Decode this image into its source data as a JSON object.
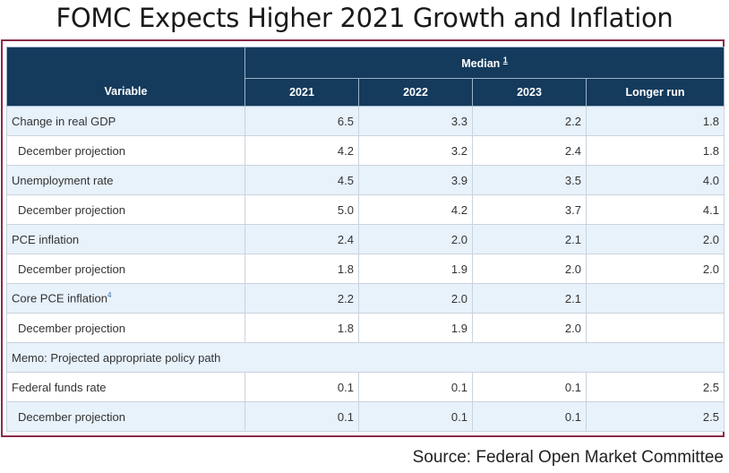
{
  "title": "FOMC Expects Higher 2021 Growth and Inflation",
  "table": {
    "variable_header": "Variable",
    "median_header": "Median",
    "median_footnote": "1",
    "columns": [
      "2021",
      "2022",
      "2023",
      "Longer run"
    ],
    "rows": [
      {
        "label": "Change in real GDP",
        "sup": "",
        "values": [
          "6.5",
          "3.3",
          "2.2",
          "1.8"
        ]
      },
      {
        "label": "December projection",
        "sup": "",
        "values": [
          "4.2",
          "3.2",
          "2.4",
          "1.8"
        ]
      },
      {
        "label": "Unemployment rate",
        "sup": "",
        "values": [
          "4.5",
          "3.9",
          "3.5",
          "4.0"
        ]
      },
      {
        "label": "December projection",
        "sup": "",
        "values": [
          "5.0",
          "4.2",
          "3.7",
          "4.1"
        ]
      },
      {
        "label": "PCE inflation",
        "sup": "",
        "values": [
          "2.4",
          "2.0",
          "2.1",
          "2.0"
        ]
      },
      {
        "label": "December projection",
        "sup": "",
        "values": [
          "1.8",
          "1.9",
          "2.0",
          "2.0"
        ]
      },
      {
        "label": "Core PCE inflation",
        "sup": "4",
        "values": [
          "2.2",
          "2.0",
          "2.1",
          ""
        ]
      },
      {
        "label": "December projection",
        "sup": "",
        "values": [
          "1.8",
          "1.9",
          "2.0",
          ""
        ]
      },
      {
        "label": "Memo: Projected appropriate policy path",
        "sup": "",
        "values": []
      },
      {
        "label": "Federal funds rate",
        "sup": "",
        "values": [
          "0.1",
          "0.1",
          "0.1",
          "2.5"
        ]
      },
      {
        "label": "December projection",
        "sup": "",
        "values": [
          "0.1",
          "0.1",
          "0.1",
          "2.5"
        ]
      }
    ]
  },
  "source": "Source: Federal Open Market Committee"
}
